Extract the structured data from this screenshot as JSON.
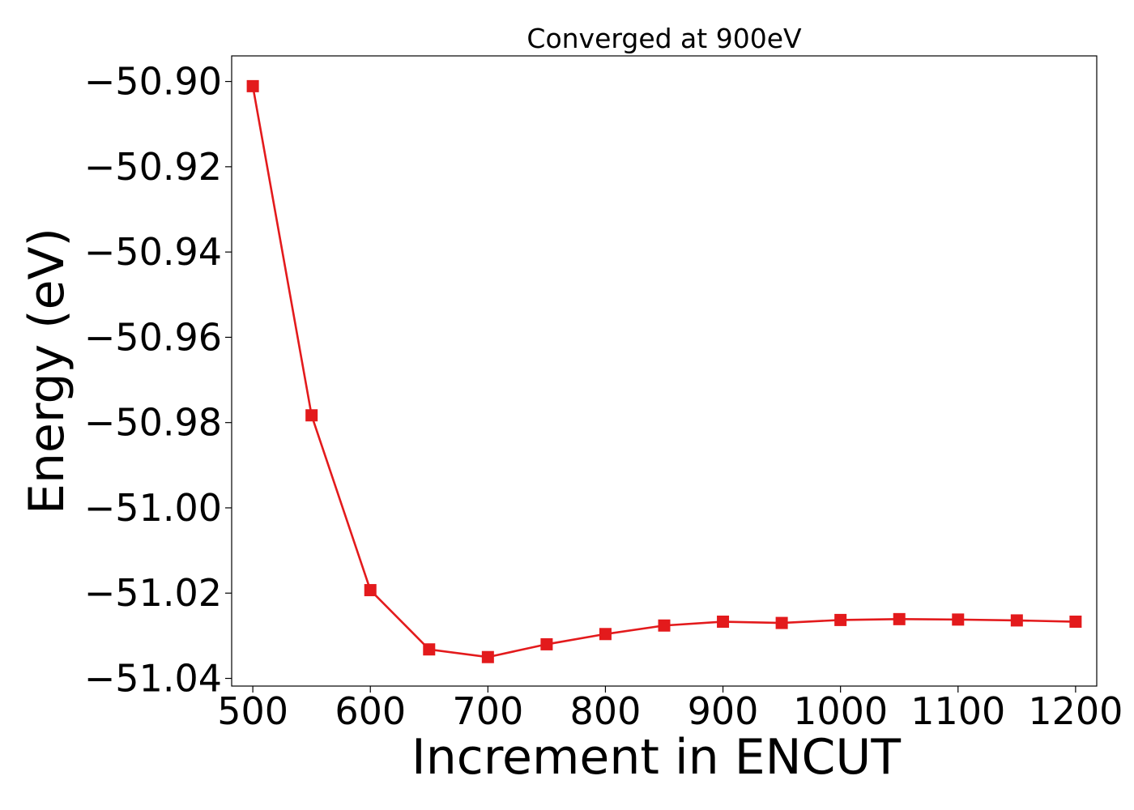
{
  "chart_data": {
    "type": "line",
    "title": "Converged at 900eV",
    "xlabel": "Increment in ENCUT",
    "ylabel": "Energy (eV)",
    "xlim": [
      482,
      1218
    ],
    "ylim": [
      -51.0418,
      -50.894
    ],
    "x_ticks": [
      500,
      600,
      700,
      800,
      900,
      1000,
      1100,
      1200
    ],
    "x_tick_labels": [
      "500",
      "600",
      "700",
      "800",
      "900",
      "1000",
      "1100",
      "1200"
    ],
    "y_ticks": [
      -50.9,
      -50.92,
      -50.94,
      -50.96,
      -50.98,
      -51.0,
      -51.02,
      -51.04
    ],
    "y_tick_labels": [
      "−50.90",
      "−50.92",
      "−50.94",
      "−50.96",
      "−50.98",
      "−51.00",
      "−51.02",
      "−51.04"
    ],
    "grid": false,
    "series": [
      {
        "color": "#e31a1c",
        "marker": "square",
        "x": [
          500,
          550,
          600,
          650,
          700,
          750,
          800,
          850,
          900,
          950,
          1000,
          1050,
          1100,
          1150,
          1200
        ],
        "y": [
          -50.9011,
          -50.9783,
          -51.0193,
          -51.0332,
          -51.035,
          -51.032,
          -51.0296,
          -51.0276,
          -51.0267,
          -51.027,
          -51.0263,
          -51.0261,
          -51.0262,
          -51.0264,
          -51.0267
        ]
      }
    ]
  }
}
